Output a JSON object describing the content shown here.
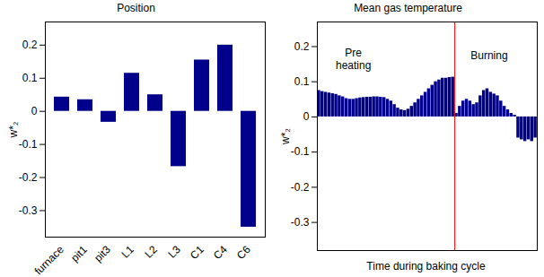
{
  "chart_data": [
    {
      "type": "bar",
      "title": "Position",
      "ylabel": "w*₂",
      "categories": [
        "furnace",
        "pit1",
        "pit3",
        "L1",
        "L2",
        "L3",
        "C1",
        "C4",
        "C6"
      ],
      "values": [
        0.043,
        0.035,
        -0.033,
        0.115,
        0.05,
        -0.167,
        0.155,
        0.2,
        -0.35
      ],
      "color": "#00008b",
      "ylim": [
        -0.38,
        0.27
      ],
      "yticks": [
        -0.3,
        -0.2,
        -0.1,
        0,
        0.1,
        0.2
      ]
    },
    {
      "type": "bar",
      "title": "Mean gas temperature",
      "ylabel": "w*₂",
      "xlabel": "Time during baking cycle",
      "x": [
        0,
        1,
        2,
        3,
        4,
        5,
        6,
        7,
        8,
        9,
        10,
        11,
        12,
        13,
        14,
        15,
        16,
        17,
        18,
        19,
        20,
        21,
        22,
        23,
        24,
        25,
        26,
        27,
        28,
        29,
        30,
        31,
        32,
        33,
        34,
        35,
        36,
        37,
        38,
        39,
        40,
        41,
        42,
        43,
        44,
        45,
        46,
        47,
        48,
        49,
        50,
        51,
        52,
        53,
        54,
        55,
        56,
        57,
        58,
        59,
        60,
        61,
        62,
        63
      ],
      "values": [
        0.075,
        0.072,
        0.07,
        0.068,
        0.066,
        0.064,
        0.06,
        0.057,
        0.052,
        0.05,
        0.05,
        0.052,
        0.054,
        0.055,
        0.056,
        0.056,
        0.057,
        0.057,
        0.056,
        0.055,
        0.05,
        0.045,
        0.035,
        0.025,
        0.02,
        0.018,
        0.022,
        0.03,
        0.04,
        0.05,
        0.06,
        0.07,
        0.08,
        0.09,
        0.1,
        0.105,
        0.11,
        0.11,
        0.112,
        0.113,
        0.01,
        0.03,
        0.045,
        0.05,
        0.045,
        0.035,
        0.04,
        0.06,
        0.075,
        0.08,
        0.07,
        0.065,
        0.06,
        0.045,
        0.03,
        0.02,
        0.01,
        0.005,
        -0.06,
        -0.065,
        -0.07,
        -0.065,
        -0.07,
        -0.06
      ],
      "color": "#00008b",
      "xlim": [
        -0.5,
        63.5
      ],
      "xticks": [],
      "ylim": [
        -0.38,
        0.27
      ],
      "yticks": [
        -0.3,
        -0.2,
        -0.1,
        0,
        0.1,
        0.2
      ],
      "tick_labels": "y",
      "annotations": [
        {
          "text": "Pre\nheating",
          "x": 10,
          "y": 0.165
        },
        {
          "text": "Burning",
          "x": 49.5,
          "y": 0.175
        }
      ],
      "phase_boundary": {
        "x": 39.5,
        "color": "#ff0000"
      }
    }
  ]
}
